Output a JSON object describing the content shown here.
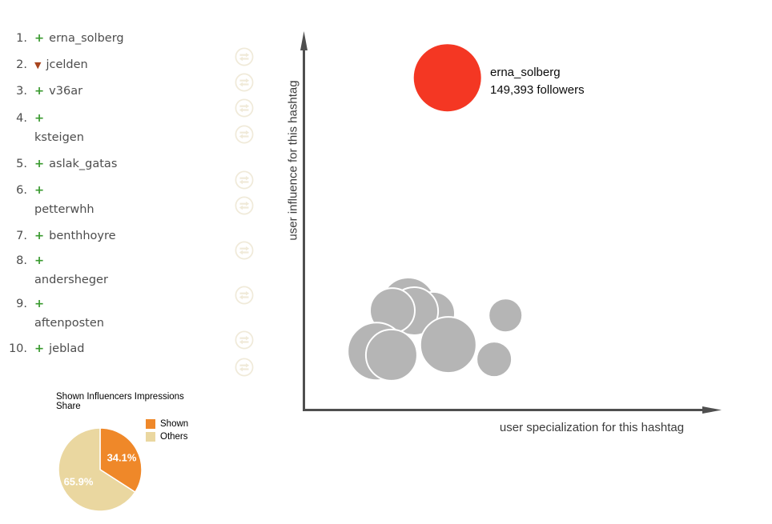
{
  "leaderboard": {
    "items": [
      {
        "rank": "1.",
        "change": "up",
        "name": "erna_solberg",
        "wrapped": false
      },
      {
        "rank": "2.",
        "change": "down",
        "name": "jcelden",
        "wrapped": false
      },
      {
        "rank": "3.",
        "change": "up",
        "name": "v36ar",
        "wrapped": false
      },
      {
        "rank": "4.",
        "change": "up",
        "name": "ksteigen",
        "wrapped": true
      },
      {
        "rank": "5.",
        "change": "up",
        "name": "aslak_gatas",
        "wrapped": false
      },
      {
        "rank": "6.",
        "change": "up",
        "name": "petterwhh",
        "wrapped": true
      },
      {
        "rank": "7.",
        "change": "up",
        "name": "benthhoyre",
        "wrapped": false
      },
      {
        "rank": "8.",
        "change": "up",
        "name": "andersheger",
        "wrapped": true
      },
      {
        "rank": "9.",
        "change": "up",
        "name": "aftenposten",
        "wrapped": true
      },
      {
        "rank": "10.",
        "change": "up",
        "name": "jeblad",
        "wrapped": false
      }
    ],
    "change_symbols": {
      "up": "+",
      "down": "▼"
    },
    "colors": {
      "up": "#3a9a2f",
      "down": "#a8451e",
      "text": "#4d4d4d"
    }
  },
  "swap_icons": {
    "icon": "swap-arrows-icon",
    "color": "#f0ead9",
    "count": 10
  },
  "chart_data": [
    {
      "type": "scatter",
      "title": "",
      "xlabel": "user specialization for this hashtag",
      "ylabel": "user influence for this hashtag",
      "x_range": [
        0,
        1
      ],
      "y_range": [
        0,
        1
      ],
      "grid": false,
      "axis_color": "#4f4f4f",
      "points": [
        {
          "name": "erna_solberg",
          "label": "erna_solberg",
          "annotation": "149,393 followers",
          "x": 0.345,
          "y": 0.877,
          "r": 42,
          "color": "#f43723",
          "stroke": "none"
        },
        {
          "x": 0.251,
          "y": 0.277,
          "r": 34,
          "color": "#b5b5b5",
          "stroke": "#ffffff"
        },
        {
          "x": 0.311,
          "y": 0.254,
          "r": 27,
          "color": "#b5b5b5",
          "stroke": "#ffffff"
        },
        {
          "x": 0.265,
          "y": 0.26,
          "r": 30,
          "color": "#b5b5b5",
          "stroke": "#ffffff"
        },
        {
          "x": 0.213,
          "y": 0.262,
          "r": 28,
          "color": "#b5b5b5",
          "stroke": "#ffffff"
        },
        {
          "x": 0.175,
          "y": 0.154,
          "r": 36,
          "color": "#b5b5b5",
          "stroke": "#ffffff"
        },
        {
          "x": 0.211,
          "y": 0.144,
          "r": 32,
          "color": "#b5b5b5",
          "stroke": "#ffffff"
        },
        {
          "x": 0.347,
          "y": 0.171,
          "r": 35,
          "color": "#b5b5b5",
          "stroke": "#ffffff"
        },
        {
          "x": 0.484,
          "y": 0.249,
          "r": 21,
          "color": "#b5b5b5",
          "stroke": "#ffffff"
        },
        {
          "x": 0.457,
          "y": 0.133,
          "r": 22,
          "color": "#b5b5b5",
          "stroke": "#ffffff"
        }
      ]
    },
    {
      "type": "pie",
      "title": "Shown Influencers Impressions Share",
      "legend_position": "top-right",
      "label_color": "#ffffff",
      "slices": [
        {
          "label": "Shown",
          "value": 34.1,
          "pct_label": "34.1%",
          "color": "#ef8829"
        },
        {
          "label": "Others",
          "value": 65.9,
          "pct_label": "65.9%",
          "color": "#ead7a0"
        }
      ]
    }
  ]
}
